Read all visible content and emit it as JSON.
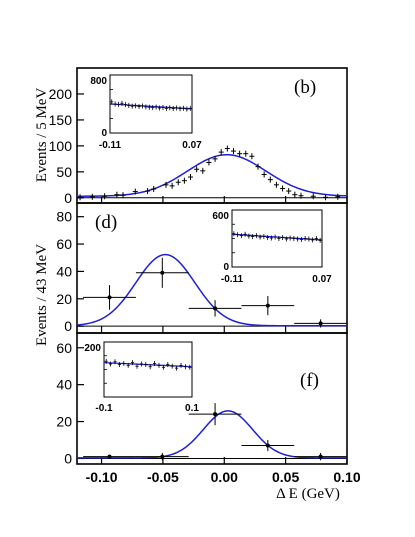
{
  "chart_data": [
    {
      "type": "scatter",
      "panel": "(b)",
      "ylabel": "Events / 5 MeV",
      "xlim": [
        -0.12,
        0.1
      ],
      "ylim": [
        -10,
        250
      ],
      "yticks": [
        0,
        50,
        100,
        150,
        200
      ],
      "fit": {
        "peak": 80,
        "mean": 0.002,
        "sigma": 0.032,
        "baseline": 3
      },
      "points": [
        {
          "x": -0.1175,
          "y": 1
        },
        {
          "x": -0.1075,
          "y": 2
        },
        {
          "x": -0.0975,
          "y": 3
        },
        {
          "x": -0.0875,
          "y": 6
        },
        {
          "x": -0.0825,
          "y": 5
        },
        {
          "x": -0.0725,
          "y": 12
        },
        {
          "x": -0.0625,
          "y": 13
        },
        {
          "x": -0.0575,
          "y": 17
        },
        {
          "x": -0.0475,
          "y": 25
        },
        {
          "x": -0.0425,
          "y": 23
        },
        {
          "x": -0.0375,
          "y": 30
        },
        {
          "x": -0.0325,
          "y": 33
        },
        {
          "x": -0.0275,
          "y": 40
        },
        {
          "x": -0.0225,
          "y": 55
        },
        {
          "x": -0.0175,
          "y": 52
        },
        {
          "x": -0.0125,
          "y": 68
        },
        {
          "x": -0.0075,
          "y": 75
        },
        {
          "x": -0.0025,
          "y": 88
        },
        {
          "x": 0.0025,
          "y": 95
        },
        {
          "x": 0.0075,
          "y": 90
        },
        {
          "x": 0.0125,
          "y": 85
        },
        {
          "x": 0.0175,
          "y": 85
        },
        {
          "x": 0.0225,
          "y": 80
        },
        {
          "x": 0.0275,
          "y": 60
        },
        {
          "x": 0.0325,
          "y": 45
        },
        {
          "x": 0.0375,
          "y": 35
        },
        {
          "x": 0.0425,
          "y": 25
        },
        {
          "x": 0.0475,
          "y": 18
        },
        {
          "x": 0.0525,
          "y": 13
        },
        {
          "x": 0.0575,
          "y": 6
        },
        {
          "x": 0.0625,
          "y": 4
        },
        {
          "x": 0.0725,
          "y": 3
        },
        {
          "x": 0.0825,
          "y": 1
        },
        {
          "x": 0.0925,
          "y": 2
        }
      ],
      "inset": {
        "xlim": [
          -0.11,
          0.07
        ],
        "ylim": [
          0,
          800
        ],
        "xtick_labels": [
          "-0.11",
          "0.07"
        ],
        "ytick_labels": [
          "0",
          "800"
        ],
        "fit": {
          "start": 400,
          "end": 335
        },
        "points": [
          430,
          400,
          395,
          410,
          392,
          380,
          370,
          375,
          365,
          372,
          360,
          355,
          350,
          358,
          345,
          352,
          340,
          348,
          338,
          345,
          335,
          342,
          330,
          340
        ]
      }
    },
    {
      "type": "scatter",
      "panel": "(d)",
      "ylabel": "Events / 43 MeV",
      "xlim": [
        -0.12,
        0.1
      ],
      "ylim": [
        -5,
        90
      ],
      "yticks": [
        0,
        20,
        40,
        60,
        80
      ],
      "fit": {
        "peak": 52,
        "mean": -0.048,
        "sigma": 0.024,
        "baseline": 0.3
      },
      "points": [
        {
          "x": -0.0935,
          "y": 21,
          "xerr": 0.0215,
          "yerr": 9
        },
        {
          "x": -0.0505,
          "y": 39,
          "xerr": 0.0215,
          "yerr": 11
        },
        {
          "x": -0.0075,
          "y": 13,
          "xerr": 0.0215,
          "yerr": 6
        },
        {
          "x": 0.0355,
          "y": 15,
          "xerr": 0.0215,
          "yerr": 7
        },
        {
          "x": 0.0785,
          "y": 2,
          "xerr": 0.0215,
          "yerr": 3
        }
      ],
      "inset": {
        "xlim": [
          -0.11,
          0.07
        ],
        "ylim": [
          0,
          600
        ],
        "xtick_labels": [
          "-0.11",
          "0.07"
        ],
        "ytick_labels": [
          "0",
          "600"
        ],
        "fit": {
          "start": 345,
          "end": 285
        },
        "points": [
          350,
          340,
          330,
          345,
          325,
          320,
          330,
          315,
          320,
          310,
          305,
          315,
          300,
          310,
          295,
          305,
          300,
          295,
          290,
          300,
          295,
          285,
          300,
          280
        ]
      }
    },
    {
      "type": "scatter",
      "panel": "(f)",
      "xlabel": "Δ E (GeV)",
      "xlim": [
        -0.12,
        0.1
      ],
      "ylim": [
        -3,
        68
      ],
      "yticks": [
        0,
        20,
        40,
        60
      ],
      "xticks": [
        -0.1,
        -0.05,
        0.0,
        0.05,
        0.1
      ],
      "xtick_labels": [
        "-0.10",
        "-0.05",
        "0.00",
        "0.05",
        "0.10"
      ],
      "fit": {
        "peak": 25.5,
        "mean": 0.003,
        "sigma": 0.02,
        "baseline": 0.3
      },
      "points": [
        {
          "x": -0.0935,
          "y": 1,
          "xerr": 0.0215,
          "yerr": 1
        },
        {
          "x": -0.0505,
          "y": 1,
          "xerr": 0.0215,
          "yerr": 2
        },
        {
          "x": -0.0075,
          "y": 24,
          "xerr": 0.0215,
          "yerr": 6
        },
        {
          "x": 0.0355,
          "y": 7,
          "xerr": 0.0215,
          "yerr": 3
        },
        {
          "x": 0.0785,
          "y": 1,
          "xerr": 0.0215,
          "yerr": 2
        }
      ],
      "inset": {
        "xlim": [
          -0.1,
          0.1
        ],
        "ylim": [
          0,
          200
        ],
        "xtick_labels": [
          "-0.1",
          "0.1"
        ],
        "ytick_labels": [
          "200"
        ],
        "fit": {
          "start": 125,
          "end": 110
        },
        "points": [
          130,
          120,
          128,
          118,
          122,
          115,
          125,
          112,
          120,
          118,
          110,
          122,
          115,
          108,
          118,
          112,
          105,
          115,
          110,
          108
        ]
      }
    }
  ],
  "colors": {
    "fit": "#1f1fd6",
    "data": "#000000",
    "axis": "#000000"
  }
}
